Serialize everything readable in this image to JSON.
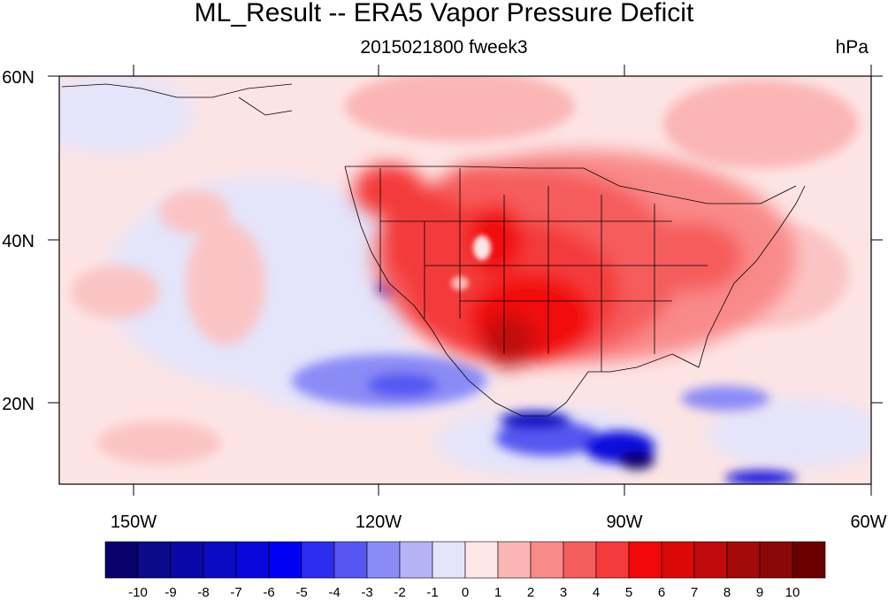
{
  "header": {
    "title": "ML_Result -- ERA5 Vapor Pressure Deficit",
    "subtitle": "2015021800 fweek3",
    "units": "hPa"
  },
  "map": {
    "lon_range": [
      -160,
      -60
    ],
    "lat_range": [
      10,
      60
    ],
    "lon_ticks": [
      {
        "value": -150,
        "label": "150W"
      },
      {
        "value": -120,
        "label": "120W"
      },
      {
        "value": -90,
        "label": "90W"
      },
      {
        "value": -60,
        "label": "60W"
      }
    ],
    "lat_ticks": [
      {
        "value": 60,
        "label": "60N"
      },
      {
        "value": 40,
        "label": "40N"
      },
      {
        "value": 20,
        "label": "20N"
      }
    ]
  },
  "colorbar": {
    "labels": [
      "-10",
      "-9",
      "-8",
      "-7",
      "-6",
      "-5",
      "-4",
      "-3",
      "-2",
      "-1",
      "0",
      "1",
      "2",
      "3",
      "4",
      "5",
      "6",
      "7",
      "8",
      "9",
      "10"
    ],
    "colors": [
      "#08006b",
      "#0a0a8a",
      "#0808a8",
      "#0b0bc3",
      "#0808dd",
      "#0000f5",
      "#2d2df0",
      "#5656f2",
      "#8b8bf6",
      "#b3b3f6",
      "#e4e4fa",
      "#fde6e6",
      "#fbb5b5",
      "#f98a8a",
      "#f65c5c",
      "#f43a3a",
      "#f20808",
      "#db0808",
      "#c10a0a",
      "#a40a0a",
      "#8b0808",
      "#6a0000"
    ]
  }
}
